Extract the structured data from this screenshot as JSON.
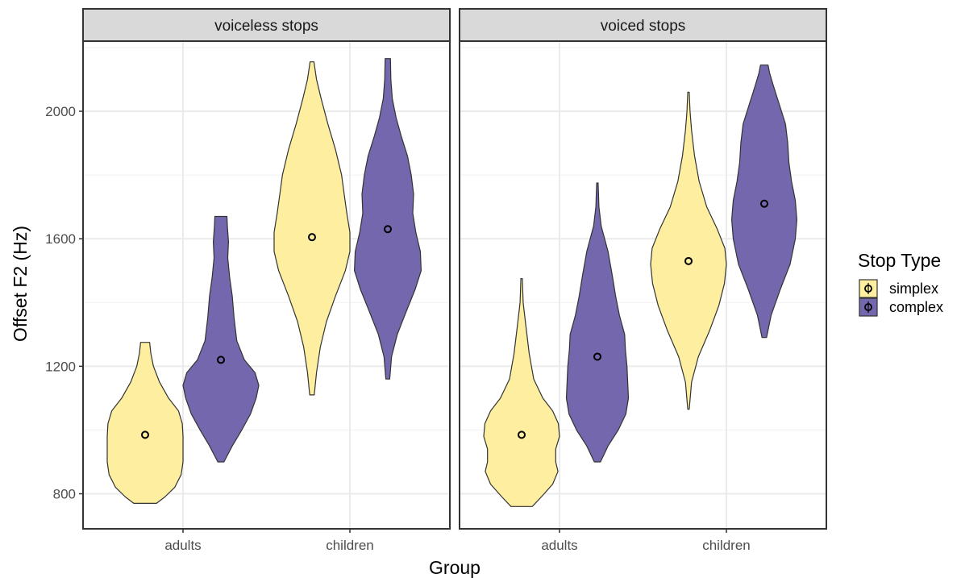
{
  "chart_data": {
    "type": "violin",
    "panels": [
      "voiceless stops",
      "voiced stops"
    ],
    "categories": [
      "adults",
      "children"
    ],
    "xlabel": "Group",
    "ylabel": "Offset F2 (Hz)",
    "ylim": [
      690,
      2220
    ],
    "yticks": [
      800,
      1200,
      1600,
      2000
    ],
    "grid": true,
    "legend": {
      "title": "Stop Type",
      "placement": "right",
      "entries": [
        {
          "key": "simplex",
          "label": "simplex",
          "color": "#FDEEA0"
        },
        {
          "key": "complex",
          "label": "complex",
          "color": "#7467AD"
        }
      ]
    },
    "outline_color": "#333333",
    "series": [
      {
        "panel": "voiceless stops",
        "category": "adults",
        "type": "simplex",
        "min": 770,
        "max": 1275,
        "mean": 985,
        "profile": [
          [
            770,
            0.3
          ],
          [
            790,
            0.52
          ],
          [
            820,
            0.78
          ],
          [
            860,
            0.95
          ],
          [
            900,
            1.0
          ],
          [
            940,
            1.0
          ],
          [
            980,
            1.0
          ],
          [
            1020,
            0.98
          ],
          [
            1060,
            0.88
          ],
          [
            1100,
            0.62
          ],
          [
            1150,
            0.38
          ],
          [
            1200,
            0.22
          ],
          [
            1240,
            0.15
          ],
          [
            1275,
            0.12
          ]
        ]
      },
      {
        "panel": "voiceless stops",
        "category": "adults",
        "type": "complex",
        "min": 900,
        "max": 1670,
        "mean": 1220,
        "profile": [
          [
            900,
            0.08
          ],
          [
            950,
            0.3
          ],
          [
            1000,
            0.55
          ],
          [
            1050,
            0.78
          ],
          [
            1100,
            0.93
          ],
          [
            1140,
            1.0
          ],
          [
            1180,
            0.9
          ],
          [
            1220,
            0.62
          ],
          [
            1280,
            0.42
          ],
          [
            1350,
            0.35
          ],
          [
            1420,
            0.3
          ],
          [
            1480,
            0.23
          ],
          [
            1540,
            0.18
          ],
          [
            1590,
            0.2
          ],
          [
            1640,
            0.17
          ],
          [
            1670,
            0.16
          ]
        ]
      },
      {
        "panel": "voiceless stops",
        "category": "children",
        "type": "simplex",
        "min": 1110,
        "max": 2155,
        "mean": 1605,
        "profile": [
          [
            1110,
            0.06
          ],
          [
            1180,
            0.12
          ],
          [
            1260,
            0.22
          ],
          [
            1340,
            0.38
          ],
          [
            1420,
            0.62
          ],
          [
            1500,
            0.88
          ],
          [
            1560,
            1.0
          ],
          [
            1620,
            1.0
          ],
          [
            1680,
            0.92
          ],
          [
            1740,
            0.85
          ],
          [
            1800,
            0.78
          ],
          [
            1880,
            0.62
          ],
          [
            1960,
            0.42
          ],
          [
            2040,
            0.24
          ],
          [
            2100,
            0.12
          ],
          [
            2155,
            0.05
          ]
        ]
      },
      {
        "panel": "voiceless stops",
        "category": "children",
        "type": "complex",
        "min": 1160,
        "max": 2165,
        "mean": 1630,
        "profile": [
          [
            1160,
            0.05
          ],
          [
            1230,
            0.1
          ],
          [
            1300,
            0.25
          ],
          [
            1370,
            0.48
          ],
          [
            1440,
            0.72
          ],
          [
            1500,
            0.88
          ],
          [
            1560,
            0.86
          ],
          [
            1620,
            0.74
          ],
          [
            1680,
            0.66
          ],
          [
            1740,
            0.68
          ],
          [
            1800,
            0.62
          ],
          [
            1860,
            0.52
          ],
          [
            1920,
            0.36
          ],
          [
            1980,
            0.22
          ],
          [
            2040,
            0.12
          ],
          [
            2100,
            0.08
          ],
          [
            2165,
            0.07
          ]
        ]
      },
      {
        "panel": "voiced stops",
        "category": "adults",
        "type": "simplex",
        "min": 760,
        "max": 1475,
        "mean": 985,
        "profile": [
          [
            760,
            0.28
          ],
          [
            790,
            0.52
          ],
          [
            830,
            0.82
          ],
          [
            870,
            0.96
          ],
          [
            900,
            0.9
          ],
          [
            940,
            0.9
          ],
          [
            980,
            1.0
          ],
          [
            1020,
            0.97
          ],
          [
            1060,
            0.82
          ],
          [
            1100,
            0.56
          ],
          [
            1160,
            0.32
          ],
          [
            1240,
            0.2
          ],
          [
            1320,
            0.12
          ],
          [
            1400,
            0.04
          ],
          [
            1475,
            0.02
          ]
        ]
      },
      {
        "panel": "voiced stops",
        "category": "adults",
        "type": "complex",
        "min": 900,
        "max": 1775,
        "mean": 1230,
        "profile": [
          [
            900,
            0.08
          ],
          [
            950,
            0.28
          ],
          [
            1000,
            0.55
          ],
          [
            1050,
            0.75
          ],
          [
            1100,
            0.82
          ],
          [
            1150,
            0.8
          ],
          [
            1200,
            0.78
          ],
          [
            1250,
            0.74
          ],
          [
            1300,
            0.72
          ],
          [
            1360,
            0.58
          ],
          [
            1420,
            0.48
          ],
          [
            1480,
            0.4
          ],
          [
            1560,
            0.28
          ],
          [
            1640,
            0.1
          ],
          [
            1700,
            0.04
          ],
          [
            1775,
            0.02
          ]
        ]
      },
      {
        "panel": "voiced stops",
        "category": "children",
        "type": "simplex",
        "min": 1065,
        "max": 2060,
        "mean": 1530,
        "profile": [
          [
            1065,
            0.02
          ],
          [
            1150,
            0.08
          ],
          [
            1230,
            0.26
          ],
          [
            1310,
            0.55
          ],
          [
            1390,
            0.8
          ],
          [
            1460,
            0.95
          ],
          [
            1520,
            1.0
          ],
          [
            1570,
            0.96
          ],
          [
            1630,
            0.76
          ],
          [
            1700,
            0.48
          ],
          [
            1780,
            0.28
          ],
          [
            1860,
            0.16
          ],
          [
            1940,
            0.08
          ],
          [
            2000,
            0.04
          ],
          [
            2060,
            0.02
          ]
        ]
      },
      {
        "panel": "voiced stops",
        "category": "children",
        "type": "complex",
        "min": 1290,
        "max": 2145,
        "mean": 1710,
        "profile": [
          [
            1290,
            0.06
          ],
          [
            1360,
            0.18
          ],
          [
            1440,
            0.42
          ],
          [
            1520,
            0.68
          ],
          [
            1600,
            0.82
          ],
          [
            1660,
            0.86
          ],
          [
            1720,
            0.82
          ],
          [
            1780,
            0.72
          ],
          [
            1840,
            0.65
          ],
          [
            1900,
            0.62
          ],
          [
            1960,
            0.56
          ],
          [
            2020,
            0.4
          ],
          [
            2080,
            0.24
          ],
          [
            2120,
            0.14
          ],
          [
            2145,
            0.1
          ]
        ]
      }
    ]
  }
}
